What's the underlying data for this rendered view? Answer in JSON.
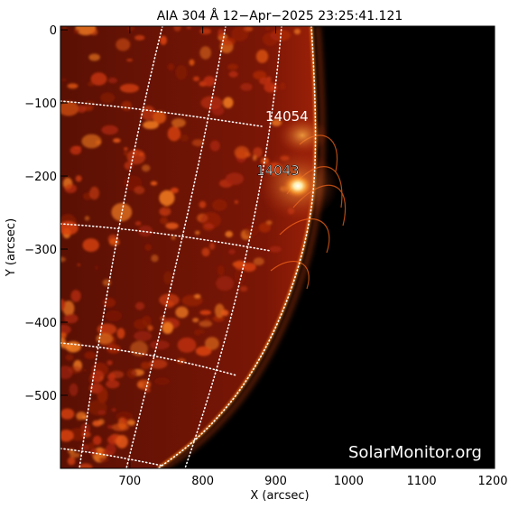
{
  "title": "AIA 304 Å 12−Apr−2025 23:25:41.121",
  "axes": {
    "xlabel": "X (arcsec)",
    "ylabel": "Y (arcsec)",
    "xlim": [
      605,
      1200
    ],
    "ylim": [
      -600,
      5
    ],
    "x_ticks": [
      "700",
      "800",
      "900",
      "1000",
      "1100",
      "1200"
    ],
    "y_ticks": [
      "0",
      "−100",
      "−200",
      "−300",
      "−400",
      "−500"
    ]
  },
  "active_regions": [
    {
      "label": "14054"
    },
    {
      "label": "14043"
    }
  ],
  "watermark": "SolarMonitor.org",
  "colors": {
    "background": "#000000",
    "chromosphere": "#b3260a",
    "limb": "#ff8a1f",
    "flare": "#ffffff",
    "grid": "#ffffff"
  }
}
